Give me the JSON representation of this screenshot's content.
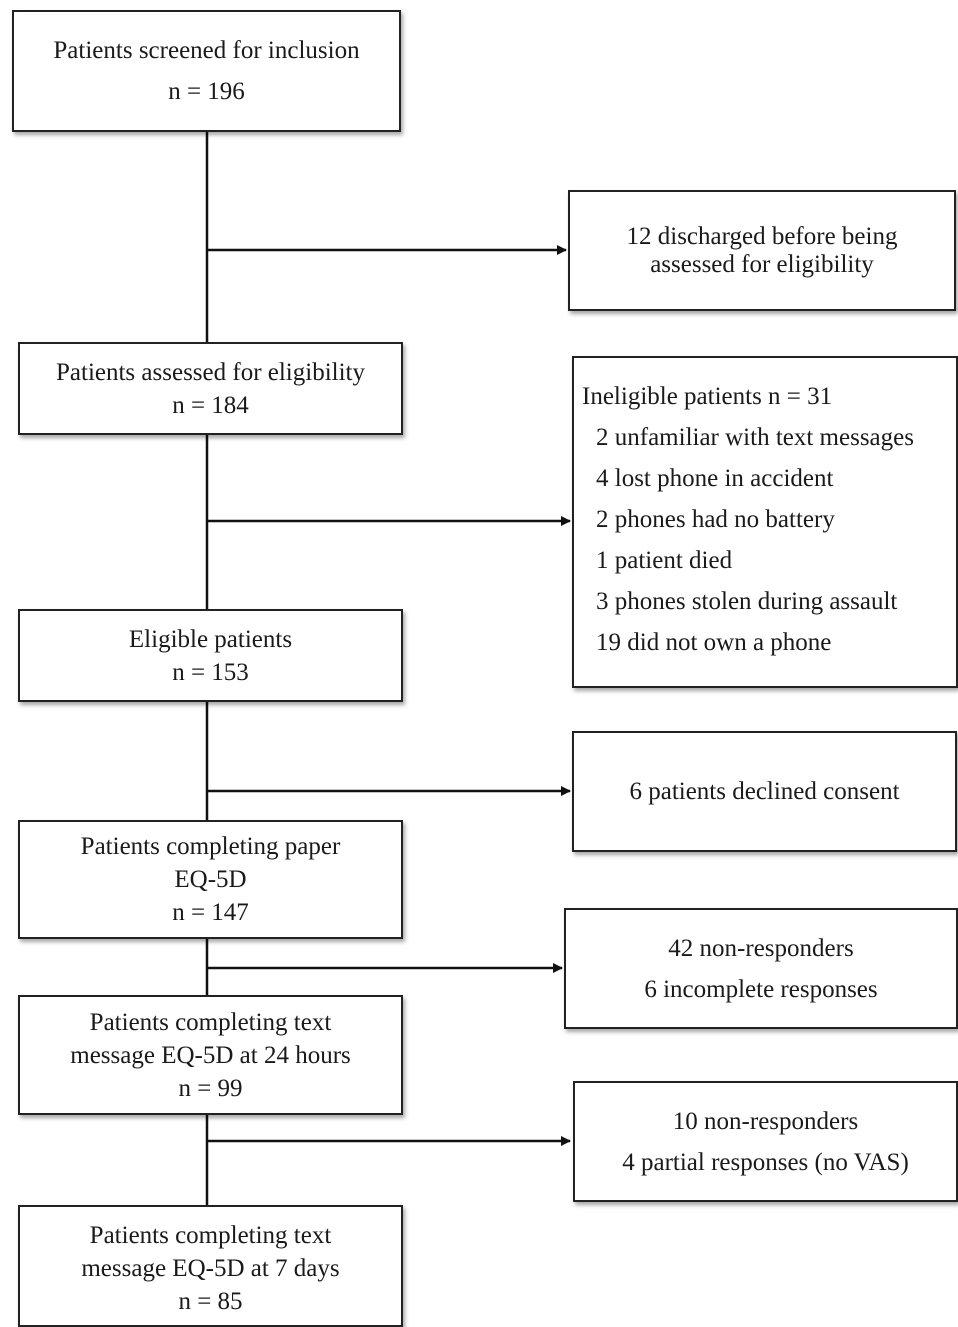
{
  "main_flow": {
    "screened": {
      "label": "Patients screened for inclusion",
      "n": "n = 196"
    },
    "assessed": {
      "label": "Patients assessed for eligibility",
      "n": "n = 184"
    },
    "eligible": {
      "label": "Eligible patients",
      "n": "n = 153"
    },
    "paper": {
      "label_line1": "Patients completing paper",
      "label_line2": "EQ-5D",
      "n": "n = 147"
    },
    "text_24h": {
      "label_line1": "Patients completing text",
      "label_line2": "message EQ-5D at 24 hours",
      "n": "n = 99"
    },
    "text_7d": {
      "label_line1": "Patients completing text",
      "label_line2": "message EQ-5D at 7 days",
      "n": "n = 85"
    }
  },
  "exclusions": {
    "discharged": {
      "line1": "12 discharged before being",
      "line2": "assessed for eligibility"
    },
    "ineligible": {
      "title": "Ineligible patients n = 31",
      "items": [
        "2 unfamiliar with text messages",
        "4 lost phone in accident",
        "2 phones had no battery",
        "1 patient died",
        "3 phones stolen during assault",
        "19 did not own a phone"
      ]
    },
    "declined": {
      "line1": "6 patients declined consent"
    },
    "dropout_24h": {
      "line1": "42 non-responders",
      "line2": "6 incomplete responses"
    },
    "dropout_7d": {
      "line1": "10 non-responders",
      "line2": "4 partial responses (no VAS)"
    }
  }
}
